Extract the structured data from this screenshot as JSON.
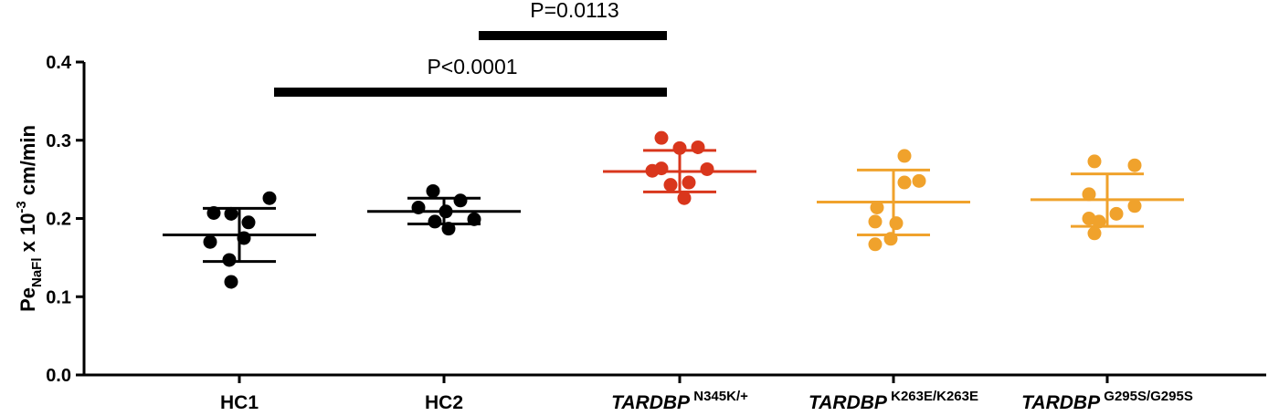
{
  "chart_data": {
    "type": "scatter",
    "ylabel": {
      "main": "Pe",
      "subscript": "NaFl",
      "middle": " x 10",
      "superscript": "-3",
      "unit": " cm/min"
    },
    "ylim": [
      0,
      0.4
    ],
    "yticks": [
      "0.0",
      "0.1",
      "0.2",
      "0.3",
      "0.4"
    ],
    "grid": false,
    "groups": [
      {
        "name": "HC1",
        "italic_part": "",
        "superscript": "",
        "color": "#000000",
        "mean": 0.179,
        "sd_low": 0.145,
        "sd_high": 0.213,
        "values": [
          0.226,
          0.207,
          0.206,
          0.195,
          0.175,
          0.17,
          0.147,
          0.119
        ]
      },
      {
        "name": "",
        "italic_part": "",
        "superscript": "",
        "display": "HC2",
        "color": "#000000",
        "mean": 0.209,
        "sd_low": 0.193,
        "sd_high": 0.226,
        "values": [
          0.235,
          0.223,
          0.214,
          0.209,
          0.199,
          0.187,
          0.196
        ]
      },
      {
        "name": "",
        "italic_part": "TARDBP",
        "superscript": "N345K/+",
        "color": "#d9361c",
        "mean": 0.26,
        "sd_low": 0.234,
        "sd_high": 0.287,
        "values": [
          0.303,
          0.291,
          0.29,
          0.264,
          0.263,
          0.261,
          0.246,
          0.243,
          0.226
        ]
      },
      {
        "name": "",
        "italic_part": "TARDBP",
        "superscript": "K263E/K263E",
        "color": "#f0a22c",
        "mean": 0.221,
        "sd_low": 0.179,
        "sd_high": 0.262,
        "values": [
          0.28,
          0.248,
          0.246,
          0.214,
          0.196,
          0.194,
          0.174,
          0.167
        ]
      },
      {
        "name": "",
        "italic_part": "TARDBP",
        "superscript": "G295S/G295S",
        "color": "#f0a22c",
        "mean": 0.224,
        "sd_low": 0.19,
        "sd_high": 0.257,
        "values": [
          0.273,
          0.268,
          0.231,
          0.216,
          0.206,
          0.2,
          0.196,
          0.181
        ]
      }
    ],
    "annotations": [
      {
        "text": "P=0.0113",
        "from_group": 1,
        "to_group": 2,
        "level": 2
      },
      {
        "text": "P<0.0001",
        "from_group": 0,
        "to_group": 2,
        "level": 1
      }
    ]
  }
}
